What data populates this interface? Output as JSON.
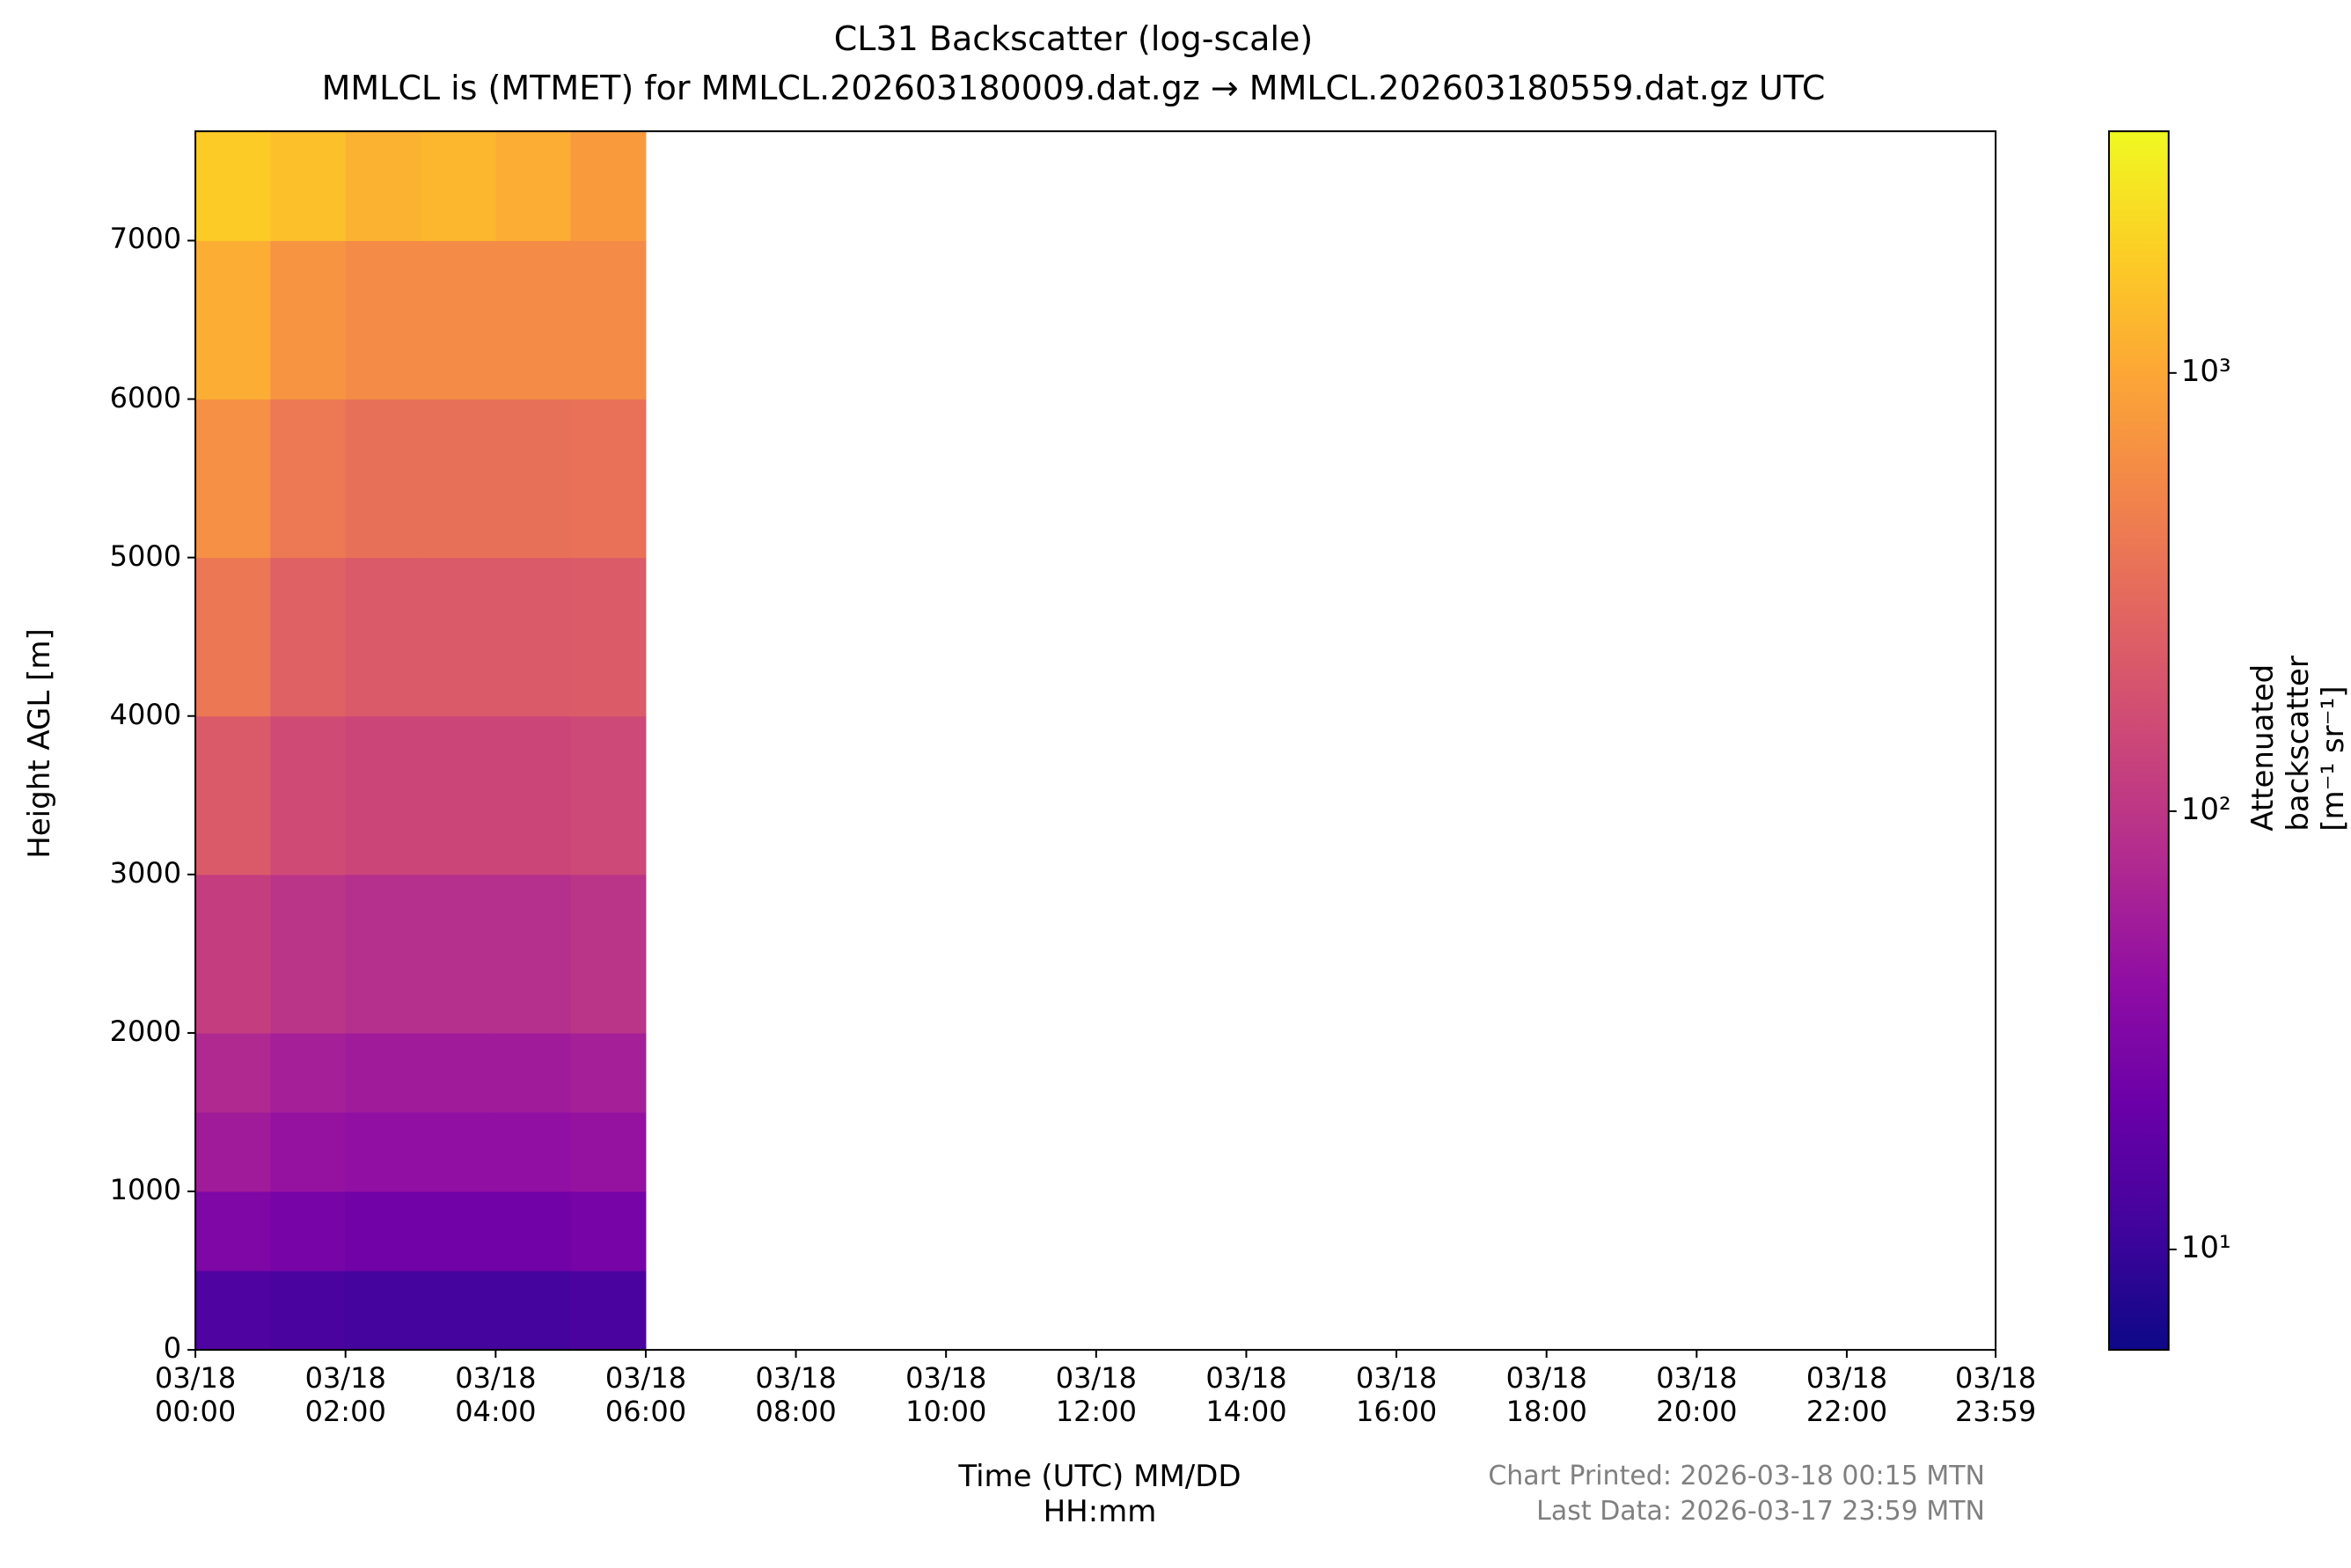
{
  "chart_data": {
    "type": "heatmap",
    "title": "CL31 Backscatter (log-scale)",
    "subtitle": "MMLCL is (MTMET) for MMLCL.202603180009.dat.gz → MMLCL.202603180559.dat.gz UTC",
    "x_label": "Time (UTC) MM/DD\nHH:mm",
    "y_label": "Height AGL [m]",
    "colorbar_label": "Attenuated backscatter [m⁻¹ sr⁻¹]",
    "annotations": [
      "Chart Printed: 2026-03-18 00:15 MTN",
      "Last Data: 2026-03-17 23:59 MTN"
    ],
    "x_edges": [
      0,
      1,
      2,
      3,
      4,
      5,
      6
    ],
    "y_edges": [
      0,
      500,
      1000,
      1500,
      2000,
      3000,
      4000,
      5000,
      6000,
      7000,
      7690
    ],
    "z": [
      [
        14,
        13,
        12,
        12,
        12,
        13
      ],
      [
        30,
        26,
        24,
        24,
        24,
        26
      ],
      [
        55,
        45,
        42,
        42,
        42,
        45
      ],
      [
        75,
        60,
        55,
        55,
        55,
        60
      ],
      [
        120,
        95,
        85,
        85,
        85,
        95
      ],
      [
        220,
        160,
        140,
        140,
        140,
        150
      ],
      [
        400,
        260,
        220,
        220,
        220,
        230
      ],
      [
        650,
        420,
        350,
        350,
        350,
        360
      ],
      [
        1100,
        700,
        600,
        600,
        600,
        600
      ],
      [
        1800,
        1500,
        1200,
        1300,
        1100,
        800
      ]
    ],
    "colormap": "plasma",
    "log_color": true,
    "clim": [
      5.9,
      3560
    ],
    "cticks": [
      {
        "value": 10,
        "label": "10¹"
      },
      {
        "value": 100,
        "label": "10²"
      },
      {
        "value": 1000,
        "label": "10³"
      }
    ],
    "xlim": [
      0,
      23.983
    ],
    "xticks": [
      {
        "value": 0,
        "label": "03/18\n00:00"
      },
      {
        "value": 2,
        "label": "03/18\n02:00"
      },
      {
        "value": 4,
        "label": "03/18\n04:00"
      },
      {
        "value": 6,
        "label": "03/18\n06:00"
      },
      {
        "value": 8,
        "label": "03/18\n08:00"
      },
      {
        "value": 10,
        "label": "03/18\n10:00"
      },
      {
        "value": 12,
        "label": "03/18\n12:00"
      },
      {
        "value": 14,
        "label": "03/18\n14:00"
      },
      {
        "value": 16,
        "label": "03/18\n16:00"
      },
      {
        "value": 18,
        "label": "03/18\n18:00"
      },
      {
        "value": 20,
        "label": "03/18\n20:00"
      },
      {
        "value": 22,
        "label": "03/18\n22:00"
      },
      {
        "value": 23.983,
        "label": "03/18\n23:59"
      }
    ],
    "ylim": [
      0,
      7690
    ],
    "yticks": [
      0,
      1000,
      2000,
      3000,
      4000,
      5000,
      6000,
      7000
    ]
  }
}
